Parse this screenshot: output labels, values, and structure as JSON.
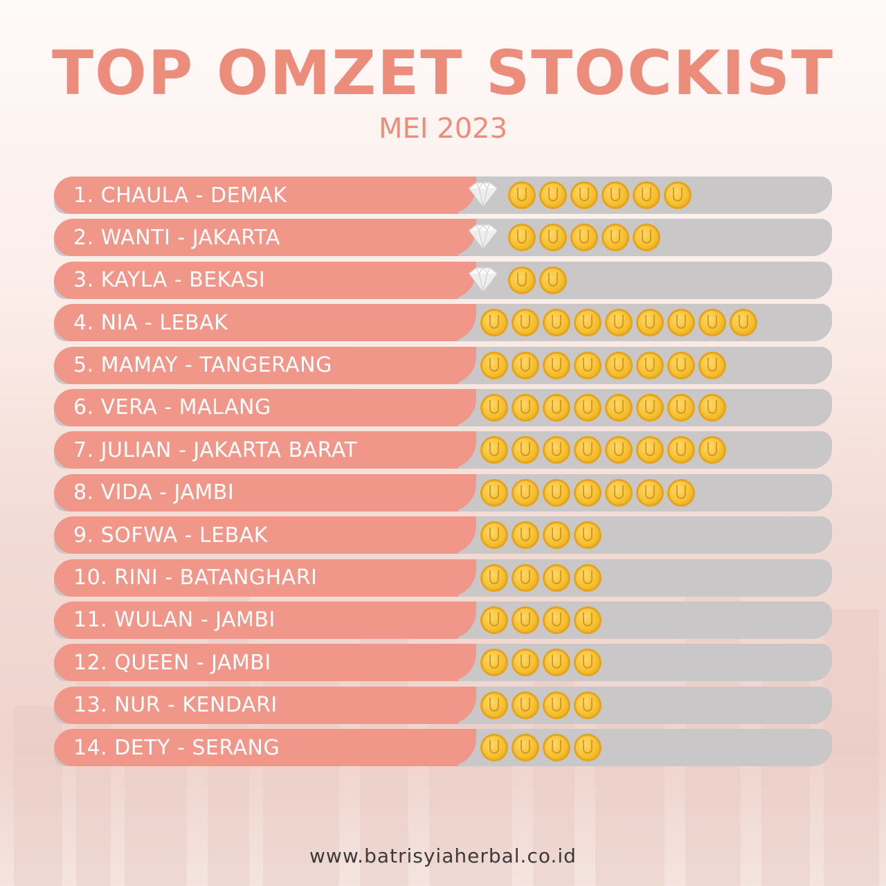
{
  "header": {
    "title": "TOP OMZET STOCKIST",
    "subtitle": "MEI 2023"
  },
  "colors": {
    "accent": "#ec8d7c",
    "label_bg": "#f0978a",
    "bar_bg": "#c9c7c8",
    "coin": "#f4bd2c"
  },
  "ranking": [
    {
      "label": "1. CHAULA - DEMAK",
      "diamonds": 1,
      "coins": 6
    },
    {
      "label": "2. WANTI - JAKARTA",
      "diamonds": 1,
      "coins": 5
    },
    {
      "label": "3. KAYLA - BEKASI",
      "diamonds": 1,
      "coins": 2
    },
    {
      "label": "4. NIA - LEBAK",
      "diamonds": 0,
      "coins": 9
    },
    {
      "label": "5. MAMAY - TANGERANG",
      "diamonds": 0,
      "coins": 8
    },
    {
      "label": "6. VERA - MALANG",
      "diamonds": 0,
      "coins": 8
    },
    {
      "label": "7. JULIAN - JAKARTA BARAT",
      "diamonds": 0,
      "coins": 8
    },
    {
      "label": "8. VIDA - JAMBI",
      "diamonds": 0,
      "coins": 7
    },
    {
      "label": "9. SOFWA - LEBAK",
      "diamonds": 0,
      "coins": 4
    },
    {
      "label": "10. RINI - BATANGHARI",
      "diamonds": 0,
      "coins": 4
    },
    {
      "label": "11. WULAN - JAMBI",
      "diamonds": 0,
      "coins": 4
    },
    {
      "label": "12. QUEEN - JAMBI",
      "diamonds": 0,
      "coins": 4
    },
    {
      "label": "13. NUR - KENDARI",
      "diamonds": 0,
      "coins": 4
    },
    {
      "label": "14. DETY - SERANG",
      "diamonds": 0,
      "coins": 4
    }
  ],
  "icons": {
    "diamond": "diamond-icon",
    "coin": "gold-coin-icon"
  },
  "footer": {
    "website": "www.batrisyiaherbal.co.id"
  }
}
